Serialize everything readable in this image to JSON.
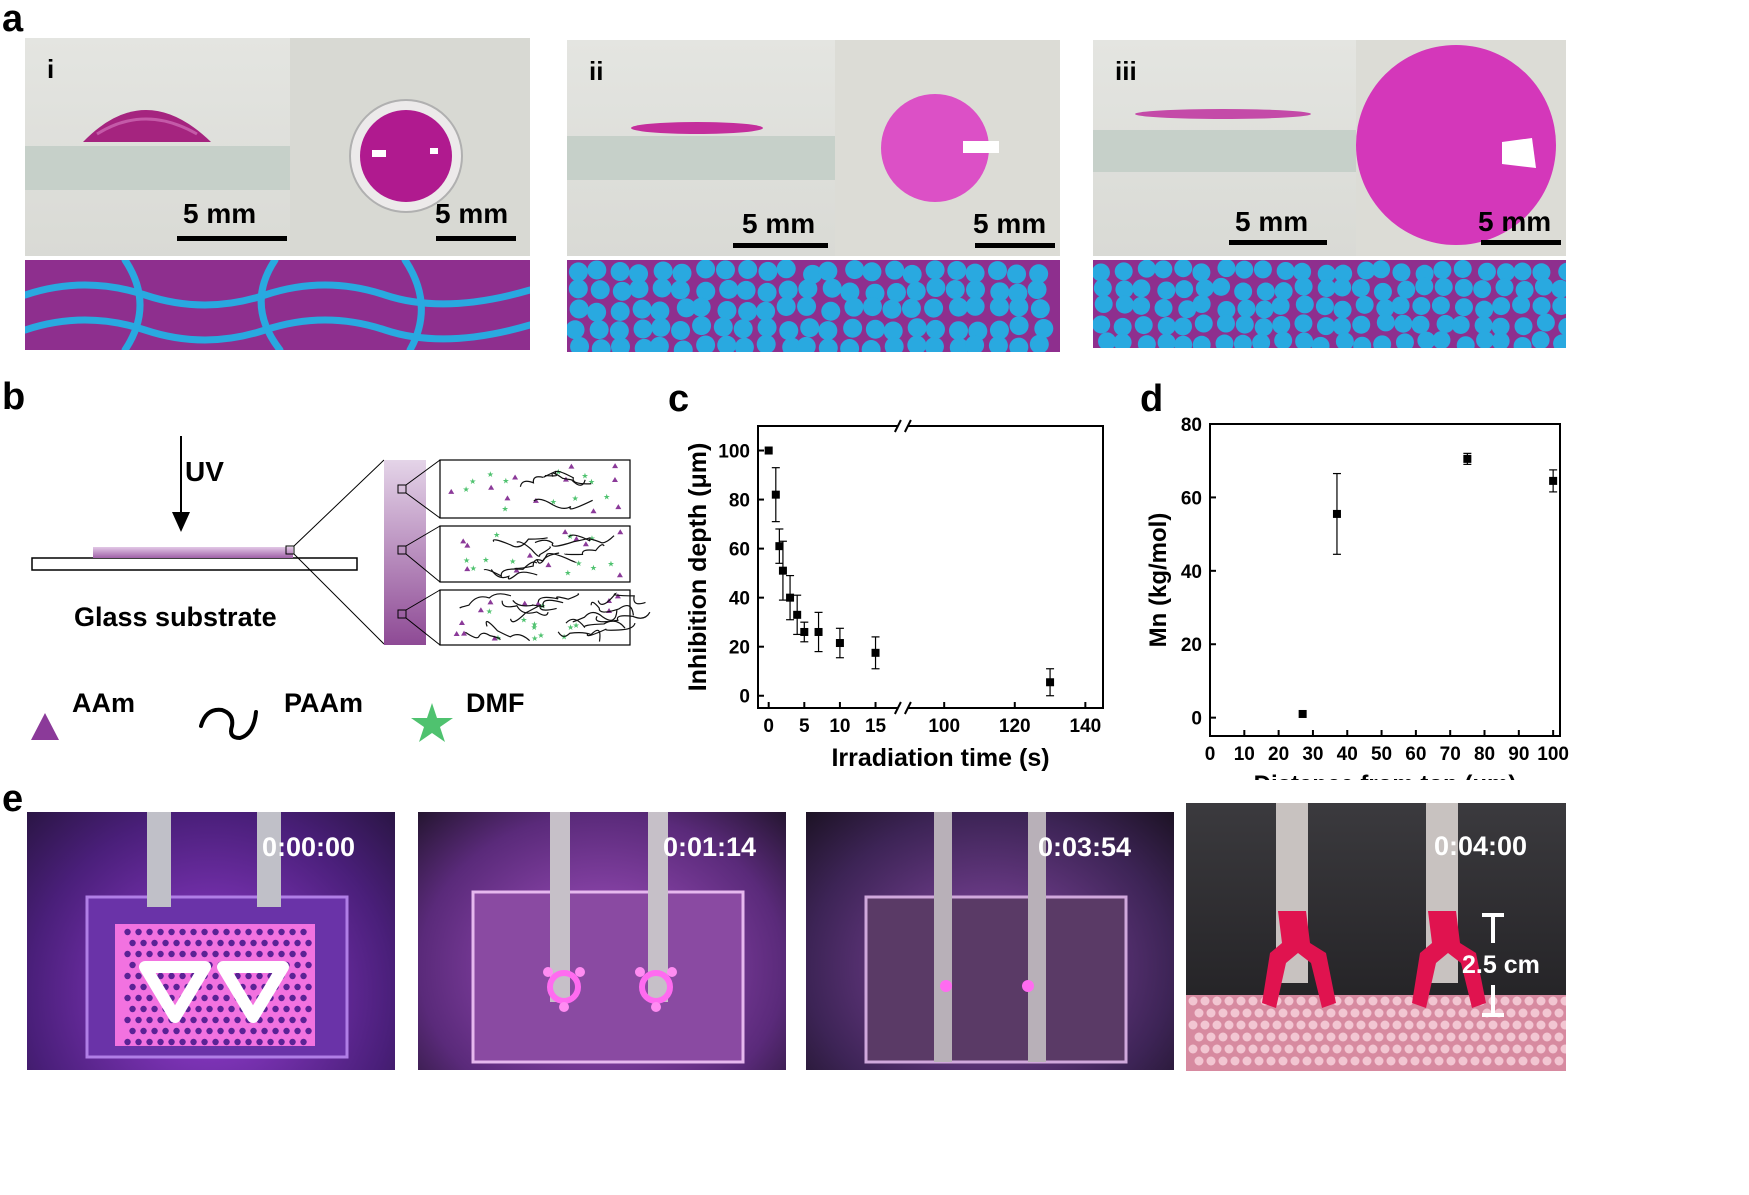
{
  "panel_a": {
    "label": "a",
    "subpanels": [
      {
        "roman": "i",
        "scale_side": "5 mm",
        "scale_top": "5 mm"
      },
      {
        "roman": "ii",
        "scale_side": "5 mm",
        "scale_top": "5 mm"
      },
      {
        "roman": "iii",
        "scale_side": "5 mm",
        "scale_top": "5 mm"
      }
    ]
  },
  "panel_b": {
    "label": "b",
    "uv": "UV",
    "substrate": "Glass substrate",
    "legend": [
      "AAm",
      "PAAm",
      "DMF"
    ]
  },
  "panel_c": {
    "label": "c"
  },
  "panel_d": {
    "label": "d"
  },
  "panel_e": {
    "label": "e",
    "timestamps": [
      "0:00:00",
      "0:01:14",
      "0:03:54",
      "0:04:00"
    ],
    "height_label": "2.5 cm"
  },
  "colors": {
    "purple": "#8e2f8e",
    "blue": "#29a9e0",
    "magenta": "#d62bb8",
    "dmf_green": "#4fc26f",
    "aam_purple": "#8b3a99",
    "print_red": "#e0134f"
  },
  "chart_data": [
    {
      "type": "scatter",
      "xlabel": "Irradiation time (s)",
      "ylabel": "Inhibition depth (μm)",
      "ylim": [
        -5,
        110
      ],
      "yticks": [
        0,
        20,
        40,
        60,
        80,
        100
      ],
      "xticks": [
        0,
        5,
        10,
        15,
        100,
        120,
        140
      ],
      "x_axis_break": [
        15,
        95
      ],
      "x": [
        0,
        1,
        1.5,
        2,
        3,
        4,
        5,
        7,
        10,
        15,
        130
      ],
      "values": [
        100,
        82,
        61,
        51,
        40,
        33,
        26,
        26,
        21.5,
        17.5,
        5.5
      ],
      "error": [
        0,
        11,
        7,
        12,
        9,
        8,
        4,
        8,
        6,
        6.5,
        5.5
      ]
    },
    {
      "type": "scatter",
      "xlabel": "Distance from top (μm)",
      "ylabel": "Mn (kg/mol)",
      "xlim": [
        0,
        102
      ],
      "ylim": [
        -5,
        80
      ],
      "yticks": [
        0,
        20,
        40,
        60,
        80
      ],
      "xticks": [
        0,
        10,
        20,
        30,
        40,
        50,
        60,
        70,
        80,
        90,
        100
      ],
      "x": [
        27,
        37,
        75,
        100
      ],
      "values": [
        1,
        55.5,
        70.5,
        64.5
      ],
      "error": [
        0,
        11,
        1.5,
        3
      ]
    }
  ]
}
